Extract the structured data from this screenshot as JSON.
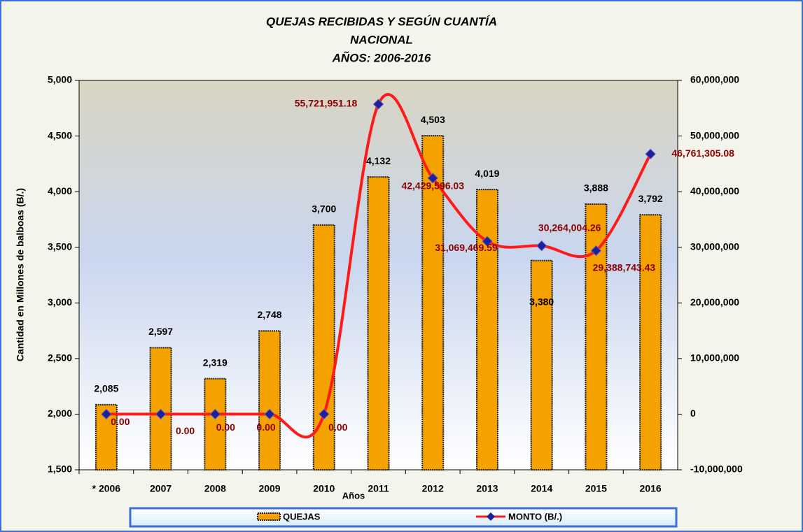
{
  "chart_data": {
    "type": "bar_line",
    "title_lines": [
      "QUEJAS RECIBIDAS Y SEGÚN CUANTÍA",
      "NACIONAL",
      "AÑOS: 2006-2016"
    ],
    "y_label": "Cantidad en Millones de balboas (B/.)",
    "x_label": "Años",
    "categories": [
      "* 2006",
      "2007",
      "2008",
      "2009",
      "2010",
      "2011",
      "2012",
      "2013",
      "2014",
      "2015",
      "2016"
    ],
    "series": [
      {
        "name": "QUEJAS",
        "color": "#f5a200",
        "values": [
          2085,
          2597,
          2319,
          2748,
          3700,
          4132,
          4503,
          4019,
          3380,
          3888,
          3792
        ],
        "value_labels": [
          "2,085",
          "2,597",
          "2,319",
          "2,748",
          "3,700",
          "4,132",
          "4,503",
          "4,019",
          "3,380",
          "3,888",
          "3,792"
        ]
      },
      {
        "name": "MONTO (B/.)",
        "color": "#ff1a1a",
        "marker_color": "#1f1f9a",
        "axis": "y2",
        "values": [
          0,
          0,
          0,
          0,
          0,
          55721951.18,
          42429596.03,
          31069469.59,
          30264004.26,
          29388743.43,
          46761305.08
        ],
        "value_labels": [
          "0.00",
          "0.00",
          "0.00",
          "0.00",
          "0.00",
          "55,721,951.18",
          "42,429,596.03",
          "31,069,469.59",
          "30,264,004.26",
          "29,388,743.43",
          "46,761,305.08"
        ]
      }
    ],
    "ylim": [
      1500,
      5000
    ],
    "yticks": [
      {
        "value": 1500,
        "label": "1,500"
      },
      {
        "value": 2000,
        "label": "2,000"
      },
      {
        "value": 2500,
        "label": "2,500"
      },
      {
        "value": 3000,
        "label": "3,000"
      },
      {
        "value": 3500,
        "label": "3,500"
      },
      {
        "value": 4000,
        "label": "4,000"
      },
      {
        "value": 4500,
        "label": "4,500"
      },
      {
        "value": 5000,
        "label": "5,000"
      }
    ],
    "y2lim": [
      -10000000,
      60000000
    ],
    "y2ticks": [
      {
        "value": -10000000,
        "label": "-10,000,000"
      },
      0,
      {
        "value": 10000000,
        "label": "10,000,000"
      },
      {
        "value": 20000000,
        "label": "20,000,000"
      },
      {
        "value": 30000000,
        "label": "30,000,000"
      },
      {
        "value": 40000000,
        "label": "40,000,000"
      },
      {
        "value": 50000000,
        "label": "50,000,000"
      },
      {
        "value": 60000000,
        "label": "60,000,000"
      }
    ],
    "legend": "bottom"
  }
}
